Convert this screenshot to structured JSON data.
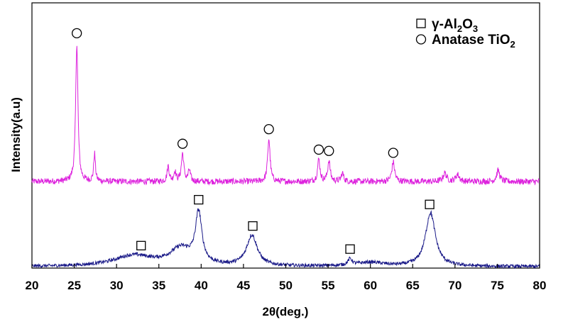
{
  "chart_data": {
    "type": "line",
    "xlabel": "2θ(deg.)",
    "ylabel": "Intensity(a.u)",
    "xlim": [
      20,
      80
    ],
    "xticks": [
      20,
      25,
      30,
      35,
      40,
      45,
      50,
      55,
      60,
      65,
      70,
      75,
      80
    ],
    "grid": false,
    "legend_position": "top-right",
    "legend": [
      {
        "marker": "square",
        "text_main": "γ-Al",
        "sub1": "2",
        "text_mid": "O",
        "sub2": "3"
      },
      {
        "marker": "circle",
        "text_main": "Anatase TiO",
        "sub1": "2",
        "text_mid": "",
        "sub2": ""
      }
    ],
    "series": [
      {
        "color": "#dd22dd",
        "baseline": 0.1,
        "noise": 0.022,
        "peaks": [
          {
            "x": 25.3,
            "height": 1.0,
            "width": 0.16
          },
          {
            "x": 27.4,
            "height": 0.2,
            "width": 0.12
          },
          {
            "x": 36.1,
            "height": 0.11,
            "width": 0.15
          },
          {
            "x": 36.9,
            "height": 0.07,
            "width": 0.15
          },
          {
            "x": 37.8,
            "height": 0.2,
            "width": 0.17
          },
          {
            "x": 38.6,
            "height": 0.08,
            "width": 0.15
          },
          {
            "x": 48.0,
            "height": 0.31,
            "width": 0.17
          },
          {
            "x": 53.9,
            "height": 0.16,
            "width": 0.17
          },
          {
            "x": 55.1,
            "height": 0.15,
            "width": 0.17
          },
          {
            "x": 56.7,
            "height": 0.06,
            "width": 0.17
          },
          {
            "x": 62.7,
            "height": 0.14,
            "width": 0.2
          },
          {
            "x": 68.8,
            "height": 0.06,
            "width": 0.25
          },
          {
            "x": 70.3,
            "height": 0.05,
            "width": 0.25
          },
          {
            "x": 75.1,
            "height": 0.08,
            "width": 0.22
          }
        ]
      },
      {
        "color": "#1a1a88",
        "baseline": 0.1,
        "noise": 0.022,
        "peaks": [
          {
            "x": 32.0,
            "height": 0.14,
            "width": 2.8
          },
          {
            "x": 37.6,
            "height": 0.22,
            "width": 1.6
          },
          {
            "x": 39.7,
            "height": 0.65,
            "width": 0.45
          },
          {
            "x": 46.0,
            "height": 0.4,
            "width": 0.75
          },
          {
            "x": 57.6,
            "height": 0.08,
            "width": 0.3
          },
          {
            "x": 60.0,
            "height": 0.05,
            "width": 2.0
          },
          {
            "x": 67.1,
            "height": 0.7,
            "width": 0.7
          }
        ]
      }
    ],
    "markers": [
      {
        "x": 25.3,
        "series": 0,
        "shape": "circle"
      },
      {
        "x": 37.8,
        "series": 0,
        "shape": "circle"
      },
      {
        "x": 48.0,
        "series": 0,
        "shape": "circle"
      },
      {
        "x": 53.9,
        "series": 0,
        "shape": "circle"
      },
      {
        "x": 55.1,
        "series": 0,
        "shape": "circle"
      },
      {
        "x": 62.7,
        "series": 0,
        "shape": "circle"
      },
      {
        "x": 32.9,
        "series": 1,
        "shape": "square"
      },
      {
        "x": 39.7,
        "series": 1,
        "shape": "square"
      },
      {
        "x": 46.1,
        "series": 1,
        "shape": "square"
      },
      {
        "x": 57.6,
        "series": 1,
        "shape": "square"
      },
      {
        "x": 67.0,
        "series": 1,
        "shape": "square"
      }
    ]
  }
}
